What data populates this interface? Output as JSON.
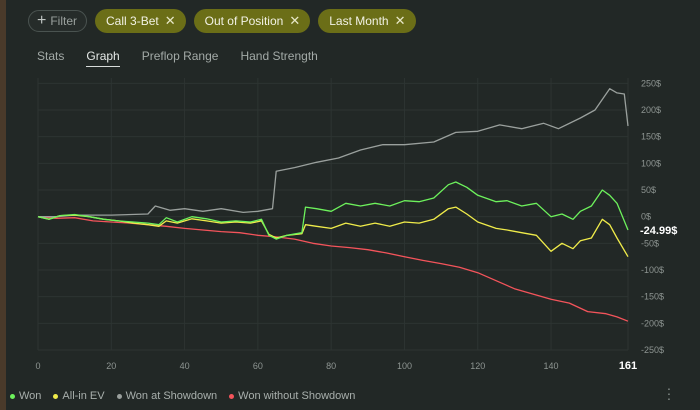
{
  "filters": {
    "add_label": "Filter",
    "chips": [
      {
        "label": "Call 3-Bet"
      },
      {
        "label": "Out of Position"
      },
      {
        "label": "Last Month"
      }
    ]
  },
  "tabs": [
    {
      "label": "Stats",
      "active": false
    },
    {
      "label": "Graph",
      "active": true
    },
    {
      "label": "Preflop Range",
      "active": false
    },
    {
      "label": "Hand Strength",
      "active": false
    }
  ],
  "colors": {
    "won": "#6df25c",
    "allin_ev": "#f0ec4a",
    "won_at_showdown": "#9aa09d",
    "won_without_showdown": "#f4545b"
  },
  "chart_data": {
    "type": "line",
    "x_ticks": [
      0,
      20,
      40,
      60,
      80,
      100,
      120,
      140
    ],
    "x_last": 161,
    "xlim": [
      0,
      161
    ],
    "ylim": [
      -250,
      260
    ],
    "y_ticks": [
      "250$",
      "200$",
      "150$",
      "100$",
      "50$",
      "0$",
      "-50$",
      "-100$",
      "-150$",
      "-200$",
      "-250$"
    ],
    "y_tick_values": [
      250,
      200,
      150,
      100,
      50,
      0,
      -50,
      -100,
      -150,
      -200,
      -250
    ],
    "current_value_label": "-24.99$",
    "current_value": -24.99,
    "series": [
      {
        "name": "Won",
        "key": "won",
        "points": [
          [
            0,
            0
          ],
          [
            3,
            -5
          ],
          [
            6,
            2
          ],
          [
            10,
            4
          ],
          [
            14,
            0
          ],
          [
            18,
            -5
          ],
          [
            22,
            -8
          ],
          [
            26,
            -10
          ],
          [
            30,
            -12
          ],
          [
            33,
            -15
          ],
          [
            35,
            -2
          ],
          [
            38,
            -10
          ],
          [
            42,
            0
          ],
          [
            46,
            -4
          ],
          [
            50,
            -10
          ],
          [
            54,
            -8
          ],
          [
            58,
            -10
          ],
          [
            61,
            -5
          ],
          [
            63,
            -35
          ],
          [
            65,
            -42
          ],
          [
            68,
            -35
          ],
          [
            72,
            -30
          ],
          [
            73,
            18
          ],
          [
            76,
            15
          ],
          [
            80,
            10
          ],
          [
            84,
            25
          ],
          [
            88,
            20
          ],
          [
            92,
            25
          ],
          [
            96,
            20
          ],
          [
            100,
            30
          ],
          [
            104,
            28
          ],
          [
            108,
            35
          ],
          [
            112,
            60
          ],
          [
            114,
            65
          ],
          [
            117,
            55
          ],
          [
            120,
            40
          ],
          [
            125,
            28
          ],
          [
            128,
            30
          ],
          [
            132,
            20
          ],
          [
            136,
            25
          ],
          [
            140,
            0
          ],
          [
            143,
            5
          ],
          [
            146,
            -5
          ],
          [
            148,
            10
          ],
          [
            151,
            20
          ],
          [
            154,
            50
          ],
          [
            156,
            40
          ],
          [
            158,
            25
          ],
          [
            161,
            -25
          ]
        ]
      },
      {
        "name": "All-in EV",
        "key": "allin_ev",
        "points": [
          [
            0,
            0
          ],
          [
            3,
            -5
          ],
          [
            6,
            2
          ],
          [
            10,
            3
          ],
          [
            14,
            0
          ],
          [
            18,
            -5
          ],
          [
            22,
            -8
          ],
          [
            26,
            -12
          ],
          [
            30,
            -15
          ],
          [
            33,
            -18
          ],
          [
            35,
            -8
          ],
          [
            38,
            -12
          ],
          [
            42,
            -4
          ],
          [
            46,
            -8
          ],
          [
            50,
            -12
          ],
          [
            54,
            -10
          ],
          [
            58,
            -12
          ],
          [
            61,
            -8
          ],
          [
            63,
            -33
          ],
          [
            65,
            -40
          ],
          [
            68,
            -35
          ],
          [
            72,
            -32
          ],
          [
            73,
            -15
          ],
          [
            76,
            -18
          ],
          [
            80,
            -22
          ],
          [
            84,
            -12
          ],
          [
            88,
            -18
          ],
          [
            92,
            -12
          ],
          [
            96,
            -18
          ],
          [
            100,
            -10
          ],
          [
            104,
            -12
          ],
          [
            108,
            -5
          ],
          [
            112,
            15
          ],
          [
            114,
            18
          ],
          [
            117,
            5
          ],
          [
            120,
            -10
          ],
          [
            125,
            -22
          ],
          [
            128,
            -25
          ],
          [
            132,
            -30
          ],
          [
            136,
            -35
          ],
          [
            140,
            -65
          ],
          [
            143,
            -50
          ],
          [
            146,
            -60
          ],
          [
            148,
            -45
          ],
          [
            151,
            -40
          ],
          [
            154,
            -5
          ],
          [
            156,
            -15
          ],
          [
            158,
            -40
          ],
          [
            161,
            -75
          ]
        ]
      },
      {
        "name": "Won at Showdown",
        "key": "won_at_showdown",
        "points": [
          [
            0,
            0
          ],
          [
            5,
            0
          ],
          [
            10,
            3
          ],
          [
            20,
            3
          ],
          [
            30,
            5
          ],
          [
            32,
            20
          ],
          [
            36,
            12
          ],
          [
            40,
            15
          ],
          [
            45,
            10
          ],
          [
            50,
            15
          ],
          [
            56,
            8
          ],
          [
            60,
            10
          ],
          [
            64,
            15
          ],
          [
            65,
            85
          ],
          [
            70,
            92
          ],
          [
            76,
            102
          ],
          [
            82,
            110
          ],
          [
            88,
            125
          ],
          [
            94,
            135
          ],
          [
            100,
            135
          ],
          [
            108,
            140
          ],
          [
            114,
            158
          ],
          [
            120,
            160
          ],
          [
            126,
            172
          ],
          [
            132,
            165
          ],
          [
            138,
            175
          ],
          [
            142,
            165
          ],
          [
            148,
            185
          ],
          [
            152,
            200
          ],
          [
            156,
            240
          ],
          [
            158,
            232
          ],
          [
            160,
            230
          ],
          [
            161,
            170
          ]
        ]
      },
      {
        "name": "Won without Showdown",
        "key": "won_without_showdown",
        "points": [
          [
            0,
            0
          ],
          [
            5,
            -3
          ],
          [
            10,
            -2
          ],
          [
            15,
            -8
          ],
          [
            20,
            -10
          ],
          [
            25,
            -12
          ],
          [
            30,
            -15
          ],
          [
            35,
            -18
          ],
          [
            40,
            -22
          ],
          [
            45,
            -25
          ],
          [
            50,
            -28
          ],
          [
            55,
            -30
          ],
          [
            60,
            -35
          ],
          [
            65,
            -38
          ],
          [
            70,
            -42
          ],
          [
            75,
            -50
          ],
          [
            80,
            -55
          ],
          [
            85,
            -58
          ],
          [
            90,
            -62
          ],
          [
            95,
            -68
          ],
          [
            100,
            -75
          ],
          [
            105,
            -82
          ],
          [
            110,
            -88
          ],
          [
            115,
            -95
          ],
          [
            120,
            -105
          ],
          [
            125,
            -120
          ],
          [
            130,
            -135
          ],
          [
            135,
            -145
          ],
          [
            140,
            -155
          ],
          [
            145,
            -162
          ],
          [
            150,
            -178
          ],
          [
            155,
            -182
          ],
          [
            158,
            -188
          ],
          [
            161,
            -196
          ]
        ]
      }
    ]
  },
  "legend": {
    "items": [
      {
        "label": "Won",
        "key": "won"
      },
      {
        "label": "All-in EV",
        "key": "allin_ev"
      },
      {
        "label": "Won at Showdown",
        "key": "won_at_showdown"
      },
      {
        "label": "Won without Showdown",
        "key": "won_without_showdown"
      }
    ]
  }
}
